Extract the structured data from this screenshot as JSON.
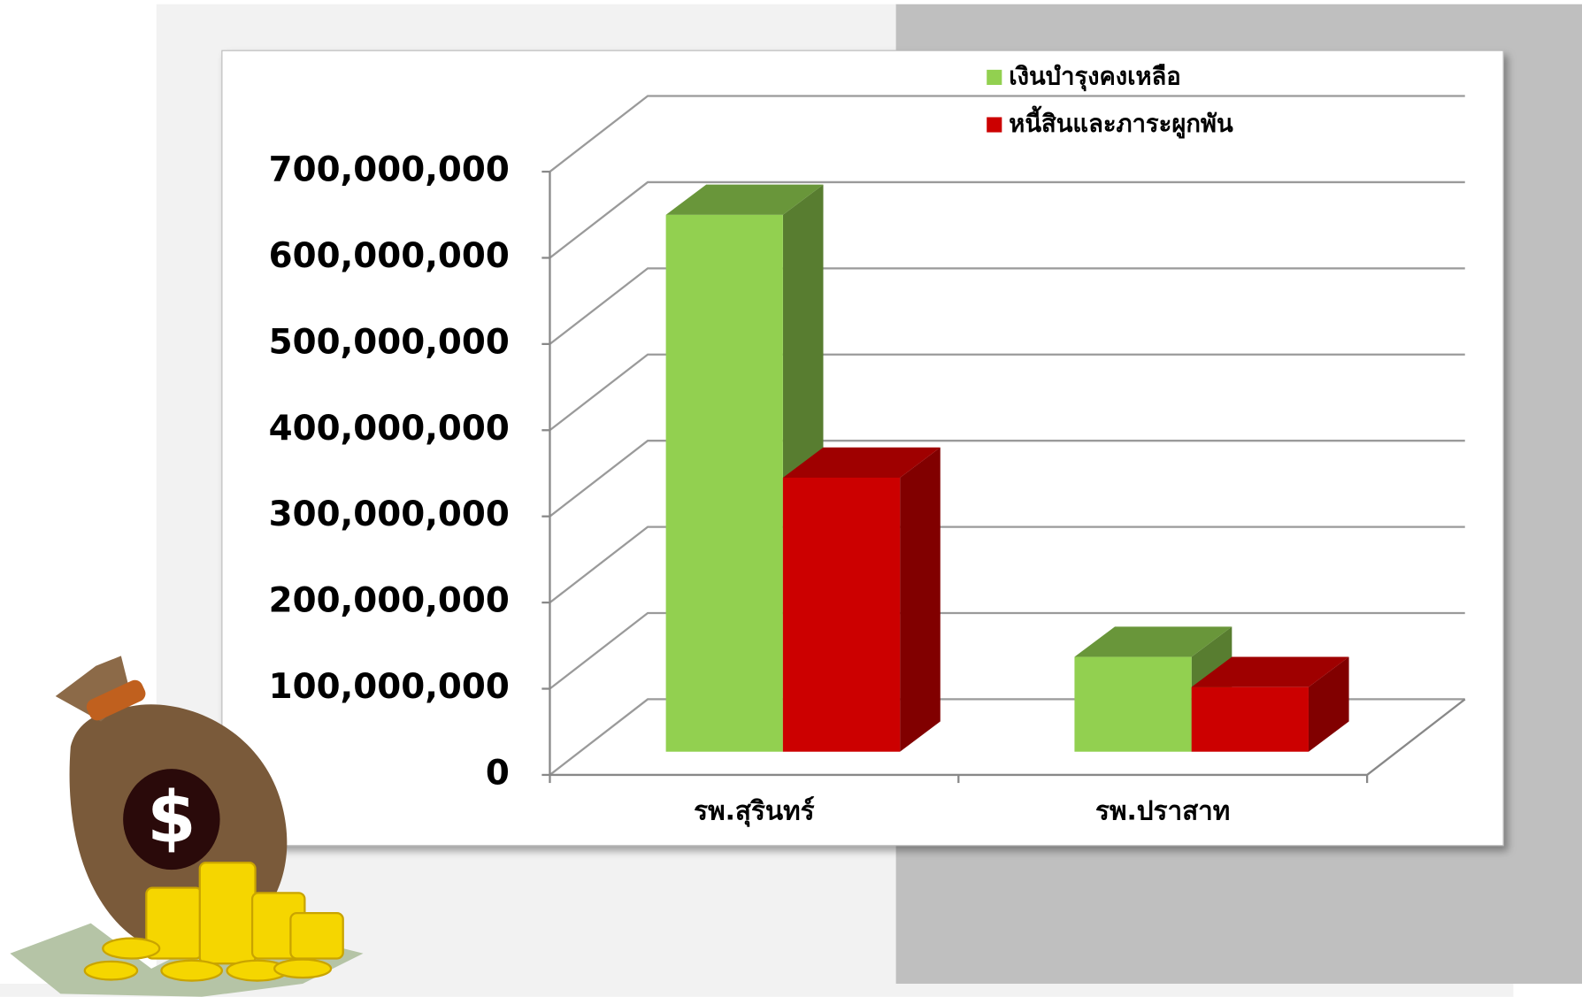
{
  "chart_data": {
    "type": "bar3d",
    "categories": [
      "รพ.สุรินทร์",
      "รพ.ปราสาท"
    ],
    "series": [
      {
        "name": "เงินบำรุงคงเหลือ",
        "color": "#92d050",
        "values": [
          623000000,
          110000000
        ]
      },
      {
        "name": "หนี้สินและภาระผูกพัน",
        "color": "#cc0000",
        "values": [
          318000000,
          75000000
        ]
      }
    ],
    "ylim": [
      0,
      700000000
    ],
    "yticks": [
      {
        "value": 0,
        "label": "0"
      },
      {
        "value": 100000000,
        "label": "100,000,000"
      },
      {
        "value": 200000000,
        "label": "200,000,000"
      },
      {
        "value": 300000000,
        "label": "300,000,000"
      },
      {
        "value": 400000000,
        "label": "400,000,000"
      },
      {
        "value": 500000000,
        "label": "500,000,000"
      },
      {
        "value": 600000000,
        "label": "600,000,000"
      },
      {
        "value": 700000000,
        "label": "700,000,000"
      }
    ],
    "grid": true
  }
}
